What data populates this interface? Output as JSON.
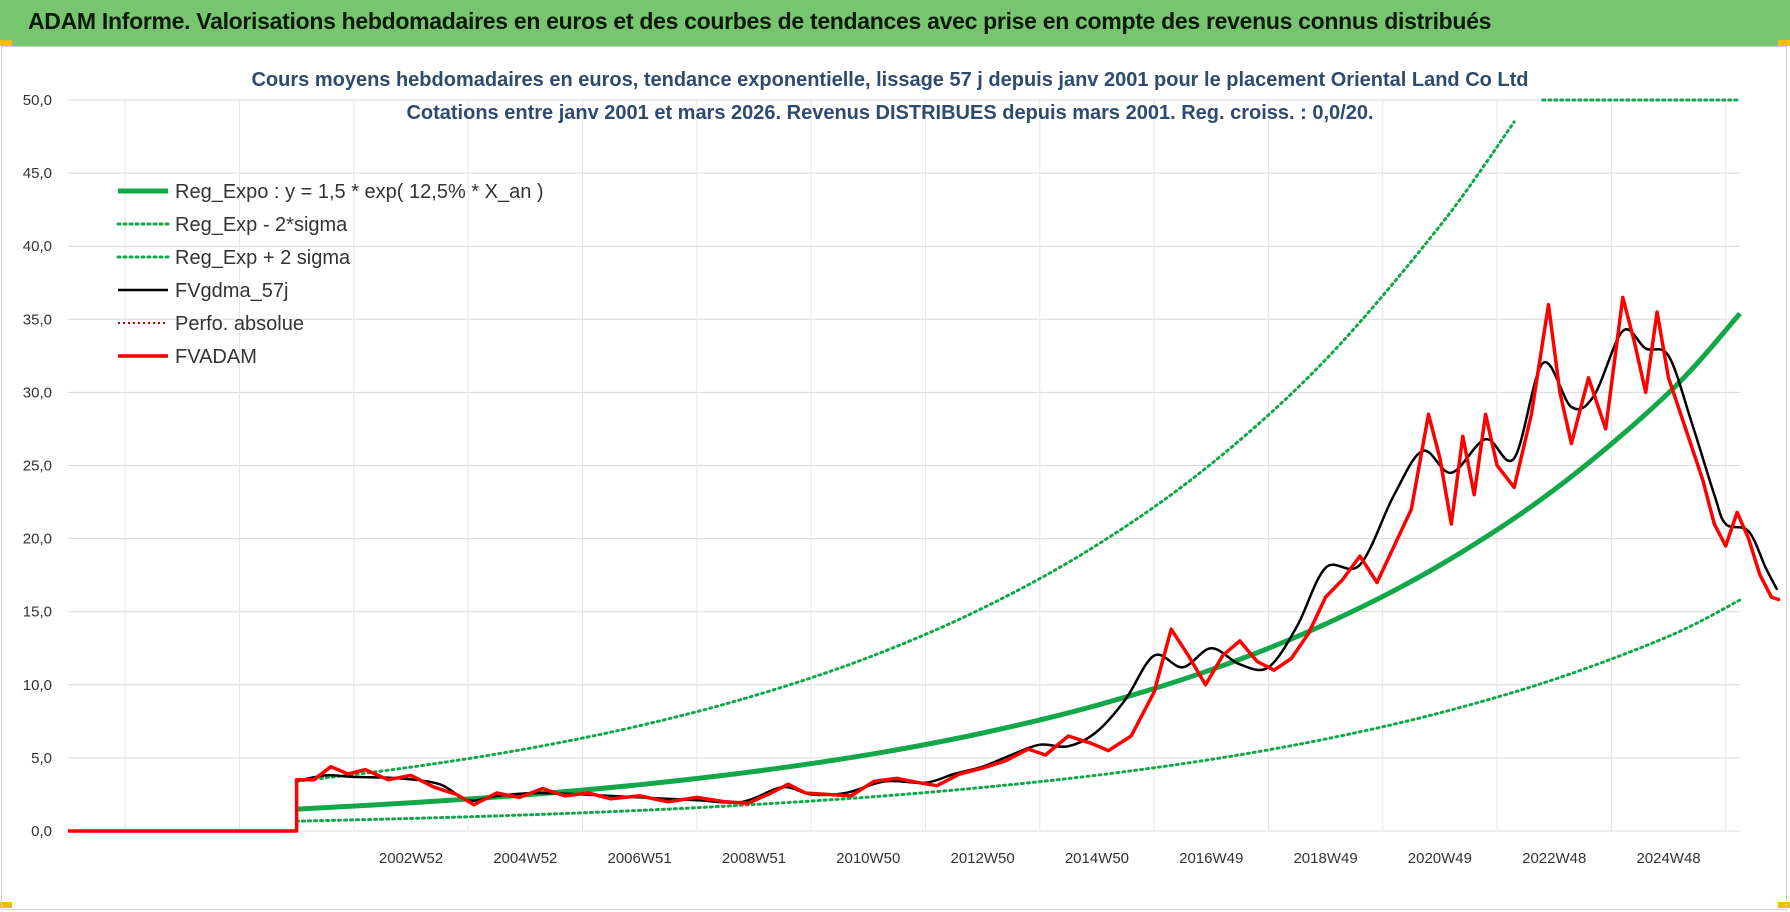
{
  "header": {
    "title": "ADAM Informe. Valorisations hebdomadaires en euros et des courbes de tendances avec prise en compte des revenus connus distribués"
  },
  "colors": {
    "banner": "#77c66f",
    "trend": "#12a84a",
    "fvadam": "#ff0000",
    "mma": "#000000",
    "perfo": "#c00000",
    "grid": "#d9d9d9"
  },
  "chart_data": {
    "type": "line",
    "title": "Cours moyens hebdomadaires en euros, tendance exponentielle, lissage 57 j depuis janv 2001  pour le placement Oriental Land Co Ltd",
    "subtitle": "Cotations entre janv 2001 et mars 2026. Revenus DISTRIBUES depuis mars 2001.  Reg. croiss. : 0,0/20.",
    "xlabel": "",
    "ylabel": "",
    "ylim": [
      0,
      50
    ],
    "yticks": [
      "0,0",
      "5,0",
      "10,0",
      "15,0",
      "20,0",
      "25,0",
      "30,0",
      "35,0",
      "40,0",
      "45,0",
      "50,0"
    ],
    "xticks": [
      {
        "label": "2002W52",
        "x": 2003.0
      },
      {
        "label": "2004W52",
        "x": 2005.0
      },
      {
        "label": "2006W51",
        "x": 2007.0
      },
      {
        "label": "2008W51",
        "x": 2009.0
      },
      {
        "label": "2010W50",
        "x": 2011.0
      },
      {
        "label": "2012W50",
        "x": 2013.0
      },
      {
        "label": "2014W50",
        "x": 2015.0
      },
      {
        "label": "2016W49",
        "x": 2017.0
      },
      {
        "label": "2018W49",
        "x": 2019.0
      },
      {
        "label": "2020W49",
        "x": 2021.0
      },
      {
        "label": "2022W48",
        "x": 2023.0
      },
      {
        "label": "2024W48",
        "x": 2025.0
      }
    ],
    "xlim": [
      1997.0,
      2026.25
    ],
    "grid": true,
    "legend_position": "top-left",
    "series": [
      {
        "name": "Reg_Expo : y = 1,5 * exp( 12,5% *  X_an )",
        "style": "solid-thick",
        "points": [
          [
            2001.0,
            1.5
          ],
          [
            2003,
            1.93
          ],
          [
            2005,
            2.47
          ],
          [
            2007,
            3.17
          ],
          [
            2009,
            4.07
          ],
          [
            2011,
            5.22
          ],
          [
            2013,
            6.7
          ],
          [
            2015,
            8.6
          ],
          [
            2017,
            11.03
          ],
          [
            2019,
            14.16
          ],
          [
            2021,
            18.18
          ],
          [
            2023,
            23.34
          ],
          [
            2025,
            29.96
          ],
          [
            2026.25,
            35.4
          ]
        ]
      },
      {
        "name": "Reg_Exp - 2*sigma",
        "style": "dotted-green",
        "points": [
          [
            2001.0,
            0.67
          ],
          [
            2003,
            0.86
          ],
          [
            2005,
            1.1
          ],
          [
            2007,
            1.41
          ],
          [
            2009,
            1.81
          ],
          [
            2011,
            2.32
          ],
          [
            2013,
            2.98
          ],
          [
            2015,
            3.82
          ],
          [
            2017,
            4.9
          ],
          [
            2019,
            6.29
          ],
          [
            2021,
            8.08
          ],
          [
            2023,
            10.37
          ],
          [
            2025,
            13.31
          ],
          [
            2026.25,
            15.8
          ]
        ]
      },
      {
        "name": "Reg_Exp + 2 sigma",
        "style": "dotted-green",
        "points": [
          [
            2001.0,
            3.4
          ],
          [
            2003,
            4.37
          ],
          [
            2005,
            5.61
          ],
          [
            2007,
            7.2
          ],
          [
            2009,
            9.25
          ],
          [
            2011,
            11.87
          ],
          [
            2013,
            15.24
          ],
          [
            2015,
            19.56
          ],
          [
            2017,
            25.11
          ],
          [
            2019,
            32.24
          ],
          [
            2021,
            41.39
          ],
          [
            2022.3,
            48.5
          ]
        ],
        "extra_points": [
          [
            2022.8,
            50.0
          ],
          [
            2026.25,
            50.0
          ]
        ]
      },
      {
        "name": "FVgdma_57j",
        "style": "solid-black",
        "points": [
          [
            2001.0,
            3.4
          ],
          [
            2001.5,
            3.8
          ],
          [
            2002.0,
            3.7
          ],
          [
            2002.8,
            3.6
          ],
          [
            2003.5,
            3.2
          ],
          [
            2004.0,
            2.1
          ],
          [
            2004.5,
            2.4
          ],
          [
            2005.2,
            2.6
          ],
          [
            2006.0,
            2.5
          ],
          [
            2007.0,
            2.3
          ],
          [
            2008.0,
            2.1
          ],
          [
            2008.8,
            2.0
          ],
          [
            2009.5,
            3.0
          ],
          [
            2010.0,
            2.5
          ],
          [
            2010.6,
            2.6
          ],
          [
            2011.3,
            3.4
          ],
          [
            2012.0,
            3.3
          ],
          [
            2012.5,
            3.9
          ],
          [
            2013.0,
            4.4
          ],
          [
            2013.5,
            5.2
          ],
          [
            2014.0,
            5.9
          ],
          [
            2014.5,
            5.8
          ],
          [
            2015.0,
            6.8
          ],
          [
            2015.5,
            9.0
          ],
          [
            2016.0,
            12.0
          ],
          [
            2016.5,
            11.2
          ],
          [
            2017.0,
            12.5
          ],
          [
            2017.5,
            11.4
          ],
          [
            2018.0,
            11.2
          ],
          [
            2018.5,
            14.0
          ],
          [
            2019.0,
            18.0
          ],
          [
            2019.6,
            18.2
          ],
          [
            2020.2,
            23.0
          ],
          [
            2020.7,
            26.0
          ],
          [
            2021.2,
            24.5
          ],
          [
            2021.8,
            26.8
          ],
          [
            2022.3,
            25.5
          ],
          [
            2022.8,
            32.0
          ],
          [
            2023.3,
            29.0
          ],
          [
            2023.7,
            29.8
          ],
          [
            2024.2,
            34.2
          ],
          [
            2024.6,
            33.0
          ],
          [
            2025.0,
            32.5
          ],
          [
            2025.4,
            28.0
          ],
          [
            2025.8,
            23.0
          ],
          [
            2026.0,
            21.0
          ],
          [
            2026.4,
            20.5
          ],
          [
            2026.7,
            18.0
          ],
          [
            2026.9,
            16.5
          ]
        ]
      },
      {
        "name": "Perfo. absolue",
        "style": "dotted-red",
        "points": []
      },
      {
        "name": "FVADAM",
        "style": "solid-red",
        "points": [
          [
            1997.0,
            0.0
          ],
          [
            2001.0,
            0.0
          ],
          [
            2001.0,
            3.5
          ],
          [
            2001.3,
            3.5
          ],
          [
            2001.6,
            4.4
          ],
          [
            2001.9,
            3.9
          ],
          [
            2002.2,
            4.2
          ],
          [
            2002.6,
            3.5
          ],
          [
            2003.0,
            3.8
          ],
          [
            2003.4,
            3.0
          ],
          [
            2003.8,
            2.5
          ],
          [
            2004.1,
            1.8
          ],
          [
            2004.5,
            2.6
          ],
          [
            2004.9,
            2.3
          ],
          [
            2005.3,
            2.9
          ],
          [
            2005.7,
            2.4
          ],
          [
            2006.1,
            2.6
          ],
          [
            2006.5,
            2.2
          ],
          [
            2007.0,
            2.4
          ],
          [
            2007.5,
            2.0
          ],
          [
            2008.0,
            2.3
          ],
          [
            2008.5,
            2.0
          ],
          [
            2008.9,
            1.9
          ],
          [
            2009.3,
            2.6
          ],
          [
            2009.6,
            3.2
          ],
          [
            2009.9,
            2.6
          ],
          [
            2010.3,
            2.5
          ],
          [
            2010.7,
            2.4
          ],
          [
            2011.1,
            3.4
          ],
          [
            2011.5,
            3.6
          ],
          [
            2011.9,
            3.3
          ],
          [
            2012.2,
            3.1
          ],
          [
            2012.6,
            3.9
          ],
          [
            2013.0,
            4.3
          ],
          [
            2013.4,
            4.8
          ],
          [
            2013.8,
            5.6
          ],
          [
            2014.1,
            5.2
          ],
          [
            2014.5,
            6.5
          ],
          [
            2014.9,
            6.0
          ],
          [
            2015.2,
            5.5
          ],
          [
            2015.6,
            6.5
          ],
          [
            2016.0,
            9.5
          ],
          [
            2016.3,
            13.8
          ],
          [
            2016.6,
            12.0
          ],
          [
            2016.9,
            10.0
          ],
          [
            2017.2,
            12.0
          ],
          [
            2017.5,
            13.0
          ],
          [
            2017.8,
            11.6
          ],
          [
            2018.1,
            11.0
          ],
          [
            2018.4,
            11.8
          ],
          [
            2018.7,
            13.5
          ],
          [
            2019.0,
            16.0
          ],
          [
            2019.3,
            17.2
          ],
          [
            2019.6,
            18.8
          ],
          [
            2019.9,
            17.0
          ],
          [
            2020.2,
            19.5
          ],
          [
            2020.5,
            22.0
          ],
          [
            2020.8,
            28.5
          ],
          [
            2021.0,
            25.5
          ],
          [
            2021.2,
            21.0
          ],
          [
            2021.4,
            27.0
          ],
          [
            2021.6,
            23.0
          ],
          [
            2021.8,
            28.5
          ],
          [
            2022.0,
            25.0
          ],
          [
            2022.3,
            23.5
          ],
          [
            2022.6,
            28.5
          ],
          [
            2022.9,
            36.0
          ],
          [
            2023.1,
            30.0
          ],
          [
            2023.3,
            26.5
          ],
          [
            2023.6,
            31.0
          ],
          [
            2023.9,
            27.5
          ],
          [
            2024.2,
            36.5
          ],
          [
            2024.4,
            33.5
          ],
          [
            2024.6,
            30.0
          ],
          [
            2024.8,
            35.5
          ],
          [
            2025.0,
            31.0
          ],
          [
            2025.3,
            27.5
          ],
          [
            2025.6,
            24.0
          ],
          [
            2025.8,
            21.0
          ],
          [
            2026.0,
            19.5
          ],
          [
            2026.2,
            21.8
          ],
          [
            2026.4,
            20.0
          ],
          [
            2026.6,
            17.5
          ],
          [
            2026.8,
            16.0
          ],
          [
            2026.95,
            15.8
          ]
        ]
      }
    ]
  }
}
